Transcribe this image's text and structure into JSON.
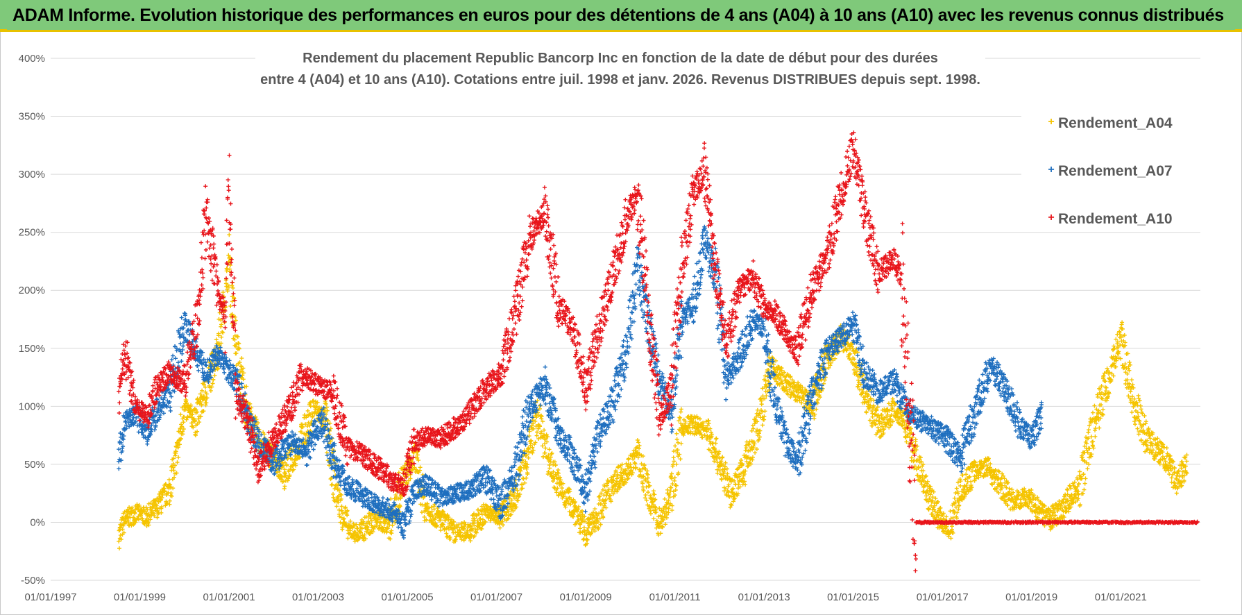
{
  "page": {
    "banner_title": "ADAM Informe. Evolution historique des performances en euros pour des détentions de 4 ans (A04) à 10 ans (A10) avec les revenus connus distribués"
  },
  "chart_data": {
    "type": "scatter",
    "title_line1": "Rendement du placement Republic Bancorp Inc en fonction de la date de début pour des durées",
    "title_line2": "entre 4 (A04) et 10 ans (A10).  Cotations entre juil. 1998 et janv. 2026. Revenus DISTRIBUES depuis sept. 1998.",
    "x_range": [
      "1997-01-01",
      "2022-10-15"
    ],
    "x_ticks": [
      "01/01/1997",
      "01/01/1999",
      "01/01/2001",
      "01/01/2003",
      "01/01/2005",
      "01/01/2007",
      "01/01/2009",
      "01/01/2011",
      "01/01/2013",
      "01/01/2015",
      "01/01/2017",
      "01/01/2019",
      "01/01/2021"
    ],
    "y_range": [
      -50,
      400
    ],
    "y_ticks": [
      "-50%",
      "0%",
      "50%",
      "100%",
      "150%",
      "200%",
      "250%",
      "300%",
      "350%",
      "400%"
    ],
    "y_unit": "%",
    "grid": "horizontal",
    "legend_position": "top-right",
    "marker": "+",
    "series": [
      {
        "name": "Rendement_A04",
        "color": "#f5c400",
        "points": [
          [
            "1998-07-15",
            -12
          ],
          [
            "1998-09-01",
            2
          ],
          [
            "1998-12-01",
            8
          ],
          [
            "1999-03-01",
            5
          ],
          [
            "1999-06-01",
            14
          ],
          [
            "1999-09-01",
            28
          ],
          [
            "1999-11-01",
            58
          ],
          [
            "2000-01-01",
            98
          ],
          [
            "2000-04-01",
            88
          ],
          [
            "2000-07-01",
            115
          ],
          [
            "2000-10-01",
            150
          ],
          [
            "2000-12-01",
            195
          ],
          [
            "2001-01-01",
            225
          ],
          [
            "2001-03-01",
            150
          ],
          [
            "2001-06-01",
            95
          ],
          [
            "2001-09-01",
            72
          ],
          [
            "2002-01-01",
            55
          ],
          [
            "2002-04-01",
            42
          ],
          [
            "2002-08-01",
            68
          ],
          [
            "2002-12-01",
            98
          ],
          [
            "2003-03-01",
            88
          ],
          [
            "2003-06-01",
            25
          ],
          [
            "2003-09-01",
            -6
          ],
          [
            "2003-12-01",
            -10
          ],
          [
            "2004-04-01",
            2
          ],
          [
            "2004-08-01",
            -2
          ],
          [
            "2004-12-01",
            38
          ],
          [
            "2005-03-01",
            55
          ],
          [
            "2005-06-01",
            12
          ],
          [
            "2005-10-01",
            2
          ],
          [
            "2006-02-01",
            -10
          ],
          [
            "2006-06-01",
            -6
          ],
          [
            "2006-10-01",
            8
          ],
          [
            "2007-02-01",
            5
          ],
          [
            "2007-06-01",
            22
          ],
          [
            "2007-09-01",
            52
          ],
          [
            "2007-12-01",
            92
          ],
          [
            "2008-03-01",
            55
          ],
          [
            "2008-06-01",
            30
          ],
          [
            "2008-10-01",
            12
          ],
          [
            "2009-01-01",
            -10
          ],
          [
            "2009-04-01",
            5
          ],
          [
            "2009-08-01",
            32
          ],
          [
            "2009-12-01",
            45
          ],
          [
            "2010-03-01",
            58
          ],
          [
            "2010-06-01",
            25
          ],
          [
            "2010-09-01",
            -2
          ],
          [
            "2010-12-01",
            25
          ],
          [
            "2011-03-01",
            82
          ],
          [
            "2011-06-01",
            85
          ],
          [
            "2011-10-01",
            78
          ],
          [
            "2012-01-01",
            52
          ],
          [
            "2012-04-01",
            25
          ],
          [
            "2012-08-01",
            48
          ],
          [
            "2012-12-01",
            90
          ],
          [
            "2013-03-01",
            135
          ],
          [
            "2013-06-01",
            122
          ],
          [
            "2013-10-01",
            112
          ],
          [
            "2014-02-01",
            102
          ],
          [
            "2014-06-01",
            142
          ],
          [
            "2014-10-01",
            160
          ],
          [
            "2015-01-01",
            145
          ],
          [
            "2015-04-01",
            112
          ],
          [
            "2015-08-01",
            82
          ],
          [
            "2015-12-01",
            98
          ],
          [
            "2016-03-01",
            88
          ],
          [
            "2016-06-01",
            55
          ],
          [
            "2016-09-01",
            25
          ],
          [
            "2016-12-01",
            5
          ],
          [
            "2017-03-01",
            -5
          ],
          [
            "2017-06-01",
            28
          ],
          [
            "2017-10-01",
            45
          ],
          [
            "2018-01-01",
            48
          ],
          [
            "2018-04-01",
            35
          ],
          [
            "2018-08-01",
            18
          ],
          [
            "2018-12-01",
            22
          ],
          [
            "2019-03-01",
            10
          ],
          [
            "2019-06-01",
            2
          ],
          [
            "2019-10-01",
            15
          ],
          [
            "2020-02-01",
            32
          ],
          [
            "2020-06-01",
            85
          ],
          [
            "2020-10-01",
            128
          ],
          [
            "2021-01-01",
            160
          ],
          [
            "2021-04-01",
            110
          ],
          [
            "2021-08-01",
            72
          ],
          [
            "2022-01-01",
            55
          ],
          [
            "2022-04-01",
            35
          ],
          [
            "2022-07-01",
            50
          ]
        ]
      },
      {
        "name": "Rendement_A07",
        "color": "#1f6fbf",
        "points": [
          [
            "1998-07-15",
            52
          ],
          [
            "1998-09-01",
            88
          ],
          [
            "1998-12-01",
            92
          ],
          [
            "1999-03-01",
            78
          ],
          [
            "1999-06-01",
            98
          ],
          [
            "1999-09-01",
            112
          ],
          [
            "2000-01-01",
            170
          ],
          [
            "2000-04-01",
            148
          ],
          [
            "2000-07-01",
            128
          ],
          [
            "2000-10-01",
            145
          ],
          [
            "2000-12-01",
            135
          ],
          [
            "2001-03-01",
            122
          ],
          [
            "2001-06-01",
            90
          ],
          [
            "2001-09-01",
            68
          ],
          [
            "2002-01-01",
            52
          ],
          [
            "2002-06-01",
            70
          ],
          [
            "2002-10-01",
            62
          ],
          [
            "2003-02-01",
            88
          ],
          [
            "2003-06-01",
            48
          ],
          [
            "2003-09-01",
            32
          ],
          [
            "2004-01-01",
            22
          ],
          [
            "2004-05-01",
            15
          ],
          [
            "2004-09-01",
            10
          ],
          [
            "2004-12-01",
            -2
          ],
          [
            "2005-03-01",
            28
          ],
          [
            "2005-06-01",
            32
          ],
          [
            "2005-10-01",
            22
          ],
          [
            "2006-02-01",
            25
          ],
          [
            "2006-06-01",
            28
          ],
          [
            "2006-10-01",
            40
          ],
          [
            "2007-02-01",
            15
          ],
          [
            "2007-06-01",
            42
          ],
          [
            "2007-10-01",
            98
          ],
          [
            "2008-02-01",
            118
          ],
          [
            "2008-06-01",
            78
          ],
          [
            "2008-10-01",
            52
          ],
          [
            "2009-01-01",
            25
          ],
          [
            "2009-04-01",
            72
          ],
          [
            "2009-08-01",
            100
          ],
          [
            "2009-12-01",
            148
          ],
          [
            "2010-03-01",
            220
          ],
          [
            "2010-06-01",
            168
          ],
          [
            "2010-09-01",
            120
          ],
          [
            "2010-12-01",
            95
          ],
          [
            "2011-03-01",
            172
          ],
          [
            "2011-06-01",
            188
          ],
          [
            "2011-09-01",
            242
          ],
          [
            "2011-12-01",
            210
          ],
          [
            "2012-03-01",
            125
          ],
          [
            "2012-06-01",
            140
          ],
          [
            "2012-10-01",
            175
          ],
          [
            "2013-01-01",
            168
          ],
          [
            "2013-04-01",
            102
          ],
          [
            "2013-07-01",
            70
          ],
          [
            "2013-10-01",
            52
          ],
          [
            "2014-02-01",
            108
          ],
          [
            "2014-06-01",
            148
          ],
          [
            "2014-10-01",
            160
          ],
          [
            "2015-01-01",
            172
          ],
          [
            "2015-04-01",
            130
          ],
          [
            "2015-08-01",
            112
          ],
          [
            "2015-12-01",
            122
          ],
          [
            "2016-03-01",
            100
          ],
          [
            "2016-06-01",
            90
          ],
          [
            "2016-10-01",
            82
          ],
          [
            "2017-02-01",
            72
          ],
          [
            "2017-06-01",
            55
          ],
          [
            "2017-10-01",
            98
          ],
          [
            "2018-02-01",
            135
          ],
          [
            "2018-06-01",
            115
          ],
          [
            "2018-10-01",
            82
          ],
          [
            "2019-01-01",
            72
          ],
          [
            "2019-04-01",
            95
          ]
        ]
      },
      {
        "name": "Rendement_A10",
        "color": "#e8151b",
        "points": [
          [
            "1998-07-15",
            110
          ],
          [
            "1998-09-01",
            148
          ],
          [
            "1998-12-01",
            98
          ],
          [
            "1999-03-01",
            92
          ],
          [
            "1999-06-01",
            118
          ],
          [
            "1999-09-01",
            130
          ],
          [
            "2000-01-01",
            120
          ],
          [
            "2000-04-01",
            165
          ],
          [
            "2000-07-01",
            265
          ],
          [
            "2000-10-01",
            200
          ],
          [
            "2000-12-01",
            180
          ],
          [
            "2001-01-01",
            295
          ],
          [
            "2001-03-01",
            112
          ],
          [
            "2001-06-01",
            88
          ],
          [
            "2001-09-01",
            45
          ],
          [
            "2002-01-01",
            72
          ],
          [
            "2002-05-01",
            95
          ],
          [
            "2002-09-01",
            128
          ],
          [
            "2003-01-01",
            118
          ],
          [
            "2003-05-01",
            112
          ],
          [
            "2003-09-01",
            65
          ],
          [
            "2004-01-01",
            58
          ],
          [
            "2004-05-01",
            48
          ],
          [
            "2004-09-01",
            35
          ],
          [
            "2004-12-01",
            32
          ],
          [
            "2005-03-01",
            68
          ],
          [
            "2005-06-01",
            75
          ],
          [
            "2005-10-01",
            72
          ],
          [
            "2006-02-01",
            82
          ],
          [
            "2006-06-01",
            95
          ],
          [
            "2006-10-01",
            115
          ],
          [
            "2007-02-01",
            128
          ],
          [
            "2007-06-01",
            178
          ],
          [
            "2007-10-01",
            245
          ],
          [
            "2008-02-01",
            268
          ],
          [
            "2008-06-01",
            185
          ],
          [
            "2008-10-01",
            165
          ],
          [
            "2009-01-01",
            115
          ],
          [
            "2009-04-01",
            160
          ],
          [
            "2009-08-01",
            210
          ],
          [
            "2009-12-01",
            262
          ],
          [
            "2010-03-01",
            285
          ],
          [
            "2010-06-01",
            175
          ],
          [
            "2010-09-01",
            90
          ],
          [
            "2010-12-01",
            115
          ],
          [
            "2011-03-01",
            220
          ],
          [
            "2011-06-01",
            282
          ],
          [
            "2011-09-01",
            305
          ],
          [
            "2011-12-01",
            218
          ],
          [
            "2012-03-01",
            150
          ],
          [
            "2012-06-01",
            198
          ],
          [
            "2012-10-01",
            212
          ],
          [
            "2013-01-01",
            185
          ],
          [
            "2013-04-01",
            180
          ],
          [
            "2013-07-01",
            162
          ],
          [
            "2013-10-01",
            148
          ],
          [
            "2014-02-01",
            200
          ],
          [
            "2014-06-01",
            230
          ],
          [
            "2014-10-01",
            285
          ],
          [
            "2015-01-01",
            325
          ],
          [
            "2015-04-01",
            268
          ],
          [
            "2015-08-01",
            215
          ],
          [
            "2015-12-01",
            228
          ],
          [
            "2016-02-01",
            210
          ],
          [
            "2016-06-01",
            0
          ],
          [
            "2017-01-01",
            0
          ],
          [
            "2018-01-01",
            0
          ],
          [
            "2019-01-01",
            0
          ],
          [
            "2020-01-01",
            0
          ],
          [
            "2021-01-01",
            0
          ],
          [
            "2022-01-01",
            0
          ],
          [
            "2022-10-01",
            0
          ]
        ]
      }
    ]
  }
}
